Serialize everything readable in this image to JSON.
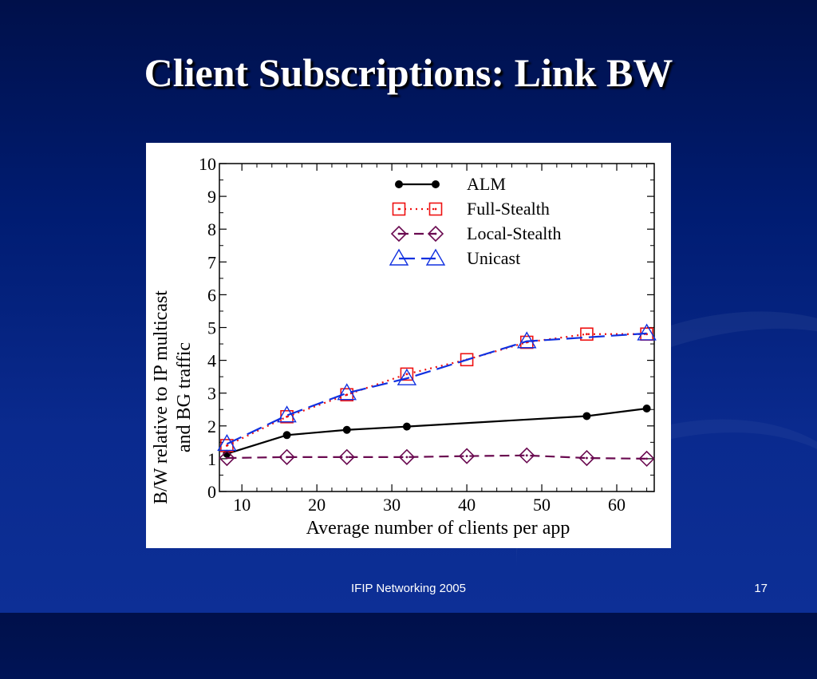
{
  "slide": {
    "title": "Client Subscriptions: Link BW",
    "footer": "IFIP Networking 2005",
    "page_number": "17"
  },
  "chart_data": {
    "type": "line",
    "xlabel": "Average number of clients per app",
    "ylabel_lines": [
      "B/W relative to IP multicast",
      "and BG traffic"
    ],
    "xlim": [
      7,
      65
    ],
    "ylim": [
      0,
      10
    ],
    "xticks": [
      10,
      20,
      30,
      40,
      50,
      60
    ],
    "yticks": [
      0,
      1,
      2,
      3,
      4,
      5,
      6,
      7,
      8,
      9,
      10
    ],
    "legend_position": "top-right",
    "grid": false,
    "series": [
      {
        "name": "ALM",
        "color": "#000000",
        "marker": "filled-circle",
        "dash": "solid",
        "x": [
          8,
          16,
          24,
          32,
          56,
          64
        ],
        "y": [
          1.15,
          1.72,
          1.88,
          1.98,
          2.3,
          2.53
        ]
      },
      {
        "name": "Full-Stealth",
        "color": "#ee1111",
        "marker": "square",
        "dash": "dotted",
        "x": [
          8,
          16,
          24,
          32,
          40,
          48,
          56,
          64
        ],
        "y": [
          1.4,
          2.28,
          2.95,
          3.58,
          4.02,
          4.55,
          4.8,
          4.8
        ]
      },
      {
        "name": "Local-Stealth",
        "color": "#6a0a50",
        "marker": "diamond",
        "dash": "dashed",
        "x": [
          8,
          16,
          24,
          32,
          40,
          48,
          56,
          64
        ],
        "y": [
          1.02,
          1.05,
          1.05,
          1.05,
          1.08,
          1.1,
          1.02,
          1.0
        ]
      },
      {
        "name": "Unicast",
        "color": "#1030e0",
        "marker": "triangle",
        "dash": "long-dash",
        "x": [
          8,
          16,
          24,
          32,
          48,
          64
        ],
        "y": [
          1.45,
          2.32,
          3.0,
          3.45,
          4.58,
          4.82
        ]
      }
    ]
  }
}
